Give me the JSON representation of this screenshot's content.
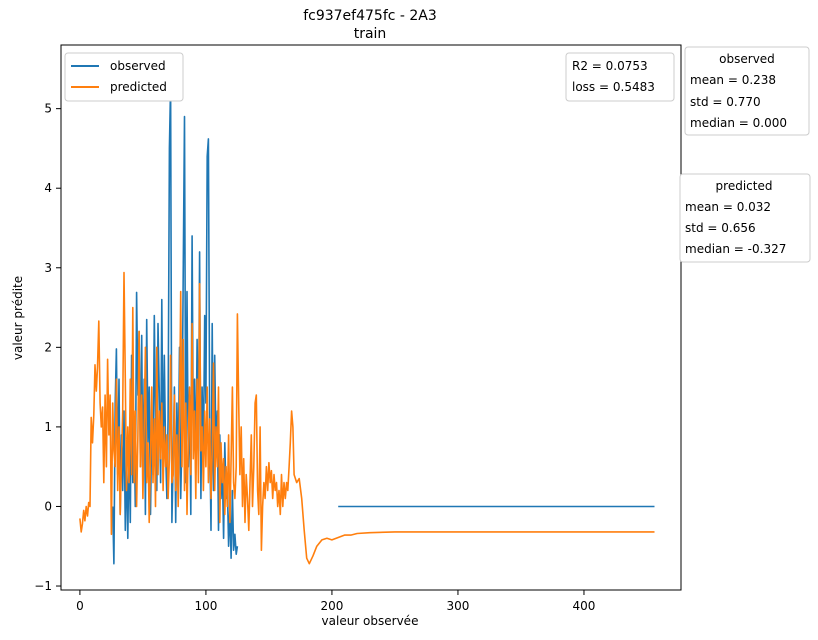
{
  "chart_data": {
    "type": "line",
    "title": "fc937ef475fc - 2A3",
    "subtitle": "train",
    "xlabel": "valeur observée",
    "ylabel": "valeur prédite",
    "xlim": [
      -15,
      477
    ],
    "ylim": [
      -1.05,
      5.8
    ],
    "xticks": [
      0,
      100,
      200,
      300,
      400
    ],
    "yticks": [
      -1,
      0,
      1,
      2,
      3,
      4,
      5
    ],
    "xtick_labels": [
      "0",
      "100",
      "200",
      "300",
      "400"
    ],
    "ytick_labels": [
      "−1",
      "0",
      "1",
      "2",
      "3",
      "4",
      "5"
    ],
    "grid": false,
    "legend": {
      "position": "upper-left",
      "entries": [
        "observed",
        "predicted"
      ]
    },
    "series": [
      {
        "name": "observed",
        "color": "#1f77b4",
        "points": [
          [
            26,
            0.0
          ],
          [
            27,
            -0.72
          ],
          [
            28,
            1.3
          ],
          [
            29,
            1.98
          ],
          [
            30,
            0.4
          ],
          [
            31,
            1.6
          ],
          [
            32,
            -0.1
          ],
          [
            33,
            0.9
          ],
          [
            34,
            0.2
          ],
          [
            35,
            1.2
          ],
          [
            36,
            -0.3
          ],
          [
            37,
            0.6
          ],
          [
            38,
            -0.4
          ],
          [
            39,
            0.8
          ],
          [
            40,
            -0.2
          ],
          [
            41,
            1.9
          ],
          [
            42,
            0.3
          ],
          [
            43,
            1.1
          ],
          [
            44,
            0.0
          ],
          [
            45,
            2.69
          ],
          [
            46,
            1.4
          ],
          [
            47,
            2.2
          ],
          [
            48,
            0.5
          ],
          [
            49,
            2.15
          ],
          [
            50,
            0.3
          ],
          [
            51,
            1.6
          ],
          [
            52,
            -0.1
          ],
          [
            53,
            2.35
          ],
          [
            54,
            0.8
          ],
          [
            55,
            1.5
          ],
          [
            56,
            -0.1
          ],
          [
            57,
            1.0
          ],
          [
            58,
            0.4
          ],
          [
            59,
            2.4
          ],
          [
            60,
            1.1
          ],
          [
            61,
            0.2
          ],
          [
            62,
            2.3
          ],
          [
            63,
            1.4
          ],
          [
            64,
            0.3
          ],
          [
            65,
            2.6
          ],
          [
            66,
            0.5
          ],
          [
            67,
            1.9
          ],
          [
            68,
            0.7
          ],
          [
            69,
            0.1
          ],
          [
            70,
            1.1
          ],
          [
            71,
            4.5
          ],
          [
            72,
            5.3
          ],
          [
            73,
            -0.2
          ],
          [
            74,
            0.6
          ],
          [
            75,
            1.5
          ],
          [
            76,
            -0.2
          ],
          [
            77,
            1.3
          ],
          [
            78,
            0.4
          ],
          [
            79,
            2.0
          ],
          [
            80,
            0.1
          ],
          [
            81,
            0.9
          ],
          [
            82,
            2.9
          ],
          [
            83,
            4.9
          ],
          [
            84,
            0.3
          ],
          [
            85,
            2.7
          ],
          [
            86,
            0.5
          ],
          [
            87,
            1.4
          ],
          [
            88,
            -0.1
          ],
          [
            89,
            3.4
          ],
          [
            90,
            0.8
          ],
          [
            91,
            1.6
          ],
          [
            92,
            0.4
          ],
          [
            93,
            2.1
          ],
          [
            94,
            0.7
          ],
          [
            95,
            3.2
          ],
          [
            96,
            0.1
          ],
          [
            97,
            1.5
          ],
          [
            98,
            0.6
          ],
          [
            99,
            2.4
          ],
          [
            100,
            1.3
          ],
          [
            101,
            4.4
          ],
          [
            102,
            4.62
          ],
          [
            103,
            1.0
          ],
          [
            104,
            -0.3
          ],
          [
            105,
            2.3
          ],
          [
            106,
            0.2
          ],
          [
            107,
            1.9
          ],
          [
            108,
            0.7
          ],
          [
            109,
            1.2
          ],
          [
            110,
            -0.3
          ],
          [
            111,
            0.9
          ],
          [
            112,
            0.1
          ],
          [
            113,
            0.5
          ],
          [
            114,
            -0.4
          ],
          [
            115,
            0.8
          ],
          [
            116,
            0.1
          ],
          [
            117,
            0.3
          ],
          [
            118,
            -0.5
          ],
          [
            119,
            0.0
          ],
          [
            120,
            -0.65
          ],
          [
            121,
            0.2
          ],
          [
            122,
            -0.55
          ],
          [
            123,
            -0.35
          ],
          [
            124,
            -0.6
          ],
          [
            125,
            -0.5
          ]
        ]
      },
      {
        "name": "observed_flat",
        "color": "#1f77b4",
        "points": [
          [
            205,
            0.0
          ],
          [
            456,
            0.0
          ]
        ]
      },
      {
        "name": "predicted",
        "color": "#ff7f0e",
        "points": [
          [
            0,
            -0.15
          ],
          [
            1,
            -0.32
          ],
          [
            2,
            -0.22
          ],
          [
            3,
            -0.05
          ],
          [
            4,
            -0.18
          ],
          [
            5,
            0.0
          ],
          [
            6,
            -0.12
          ],
          [
            7,
            0.05
          ],
          [
            8,
            0.0
          ],
          [
            9,
            1.12
          ],
          [
            10,
            0.8
          ],
          [
            11,
            1.15
          ],
          [
            12,
            1.78
          ],
          [
            13,
            1.45
          ],
          [
            14,
            1.75
          ],
          [
            15,
            2.33
          ],
          [
            16,
            1.3
          ],
          [
            17,
            1.0
          ],
          [
            18,
            1.25
          ],
          [
            19,
            0.3
          ],
          [
            20,
            1.4
          ],
          [
            21,
            0.5
          ],
          [
            22,
            1.85
          ],
          [
            23,
            0.9
          ],
          [
            24,
            1.4
          ],
          [
            25,
            -0.35
          ],
          [
            26,
            1.3
          ],
          [
            27,
            0.7
          ],
          [
            28,
            0.5
          ],
          [
            29,
            1.6
          ],
          [
            30,
            0.2
          ],
          [
            31,
            1.0
          ],
          [
            32,
            -0.1
          ],
          [
            33,
            0.6
          ],
          [
            34,
            1.2
          ],
          [
            35,
            2.94
          ],
          [
            36,
            1.6
          ],
          [
            37,
            0.2
          ],
          [
            38,
            1.0
          ],
          [
            39,
            0.3
          ],
          [
            40,
            1.6
          ],
          [
            41,
            0.4
          ],
          [
            42,
            2.5
          ],
          [
            43,
            0.3
          ],
          [
            44,
            1.2
          ],
          [
            45,
            0.0
          ],
          [
            46,
            0.9
          ],
          [
            47,
            2.2
          ],
          [
            48,
            0.5
          ],
          [
            49,
            1.4
          ],
          [
            50,
            0.1
          ],
          [
            51,
            1.0
          ],
          [
            52,
            2.0
          ],
          [
            53,
            0.3
          ],
          [
            54,
            0.8
          ],
          [
            55,
            -0.2
          ],
          [
            56,
            0.6
          ],
          [
            57,
            1.5
          ],
          [
            58,
            0.3
          ],
          [
            59,
            1.1
          ],
          [
            60,
            0.0
          ],
          [
            61,
            2.0
          ],
          [
            62,
            0.4
          ],
          [
            63,
            1.2
          ],
          [
            64,
            0.6
          ],
          [
            65,
            1.3
          ],
          [
            66,
            0.2
          ],
          [
            67,
            1.0
          ],
          [
            68,
            0.5
          ],
          [
            69,
            0.9
          ],
          [
            70,
            0.1
          ],
          [
            71,
            0.6
          ],
          [
            72,
            1.9
          ],
          [
            73,
            0.3
          ],
          [
            74,
            0.4
          ],
          [
            75,
            1.4
          ],
          [
            76,
            0.2
          ],
          [
            77,
            0.9
          ],
          [
            78,
            0.0
          ],
          [
            79,
            1.1
          ],
          [
            80,
            2.7
          ],
          [
            81,
            0.5
          ],
          [
            82,
            2.1
          ],
          [
            83,
            0.2
          ],
          [
            84,
            1.3
          ],
          [
            85,
            -0.1
          ],
          [
            86,
            0.8
          ],
          [
            87,
            1.5
          ],
          [
            88,
            0.4
          ],
          [
            89,
            2.3
          ],
          [
            90,
            0.6
          ],
          [
            91,
            1.2
          ],
          [
            92,
            0.1
          ],
          [
            93,
            1.6
          ],
          [
            94,
            0.3
          ],
          [
            95,
            2.8
          ],
          [
            96,
            0.7
          ],
          [
            97,
            1.0
          ],
          [
            98,
            0.2
          ],
          [
            99,
            1.2
          ],
          [
            100,
            0.5
          ],
          [
            101,
            1.5
          ],
          [
            102,
            0.3
          ],
          [
            103,
            1.1
          ],
          [
            104,
            0.1
          ],
          [
            105,
            0.7
          ],
          [
            106,
            1.8
          ],
          [
            107,
            0.2
          ],
          [
            108,
            1.0
          ],
          [
            109,
            0.5
          ],
          [
            110,
            1.5
          ],
          [
            111,
            -0.2
          ],
          [
            112,
            0.8
          ],
          [
            113,
            0.3
          ],
          [
            114,
            0.6
          ],
          [
            115,
            -0.1
          ],
          [
            116,
            0.5
          ],
          [
            117,
            0.0
          ],
          [
            118,
            0.9
          ],
          [
            119,
            -0.2
          ],
          [
            120,
            0.6
          ],
          [
            121,
            1.5
          ],
          [
            122,
            0.3
          ],
          [
            123,
            0.1
          ],
          [
            124,
            0.5
          ],
          [
            125,
            2.42
          ],
          [
            126,
            1.3
          ],
          [
            127,
            0.4
          ],
          [
            128,
            1.0
          ],
          [
            129,
            0.0
          ],
          [
            130,
            0.6
          ],
          [
            131,
            -0.2
          ],
          [
            132,
            0.4
          ],
          [
            133,
            0.1
          ],
          [
            134,
            -0.3
          ],
          [
            135,
            0.3
          ],
          [
            136,
            0.9
          ],
          [
            137,
            0.0
          ],
          [
            138,
            0.5
          ],
          [
            139,
            1.3
          ],
          [
            140,
            1.4
          ],
          [
            141,
            0.2
          ],
          [
            142,
            -0.1
          ],
          [
            143,
            1.0
          ],
          [
            144,
            -0.55
          ],
          [
            145,
            0.0
          ],
          [
            146,
            0.3
          ],
          [
            147,
            0.1
          ],
          [
            148,
            0.5
          ],
          [
            149,
            0.2
          ],
          [
            150,
            0.55
          ],
          [
            151,
            0.3
          ],
          [
            152,
            0.45
          ],
          [
            153,
            0.1
          ],
          [
            154,
            0.4
          ],
          [
            155,
            0.2
          ],
          [
            156,
            0.3
          ],
          [
            157,
            0.0
          ],
          [
            158,
            0.2
          ],
          [
            159,
            -0.1
          ],
          [
            160,
            0.4
          ],
          [
            161,
            0.0
          ],
          [
            162,
            0.3
          ],
          [
            163,
            0.1
          ],
          [
            164,
            0.3
          ],
          [
            165,
            0.2
          ],
          [
            166,
            0.5
          ],
          [
            167,
            0.8
          ],
          [
            168,
            1.2
          ],
          [
            169,
            1.0
          ],
          [
            170,
            0.4
          ],
          [
            172,
            0.3
          ],
          [
            174,
            0.35
          ],
          [
            176,
            0.1
          ],
          [
            178,
            -0.3
          ],
          [
            180,
            -0.65
          ],
          [
            182,
            -0.72
          ],
          [
            185,
            -0.62
          ],
          [
            188,
            -0.5
          ],
          [
            192,
            -0.42
          ],
          [
            196,
            -0.4
          ],
          [
            200,
            -0.42
          ],
          [
            205,
            -0.39
          ],
          [
            210,
            -0.36
          ],
          [
            215,
            -0.36
          ],
          [
            220,
            -0.34
          ],
          [
            230,
            -0.33
          ],
          [
            250,
            -0.32
          ],
          [
            300,
            -0.32
          ],
          [
            350,
            -0.32
          ],
          [
            400,
            -0.32
          ],
          [
            456,
            -0.32
          ]
        ]
      }
    ],
    "annotation_box": {
      "lines": [
        "R2 = 0.0753",
        "loss = 0.5483"
      ]
    },
    "stats_boxes": [
      {
        "title": "observed",
        "lines": [
          "mean = 0.238",
          "std = 0.770",
          "median = 0.000"
        ]
      },
      {
        "title": "predicted",
        "lines": [
          "mean = 0.032",
          "std = 0.656",
          "median = -0.327"
        ]
      }
    ]
  }
}
